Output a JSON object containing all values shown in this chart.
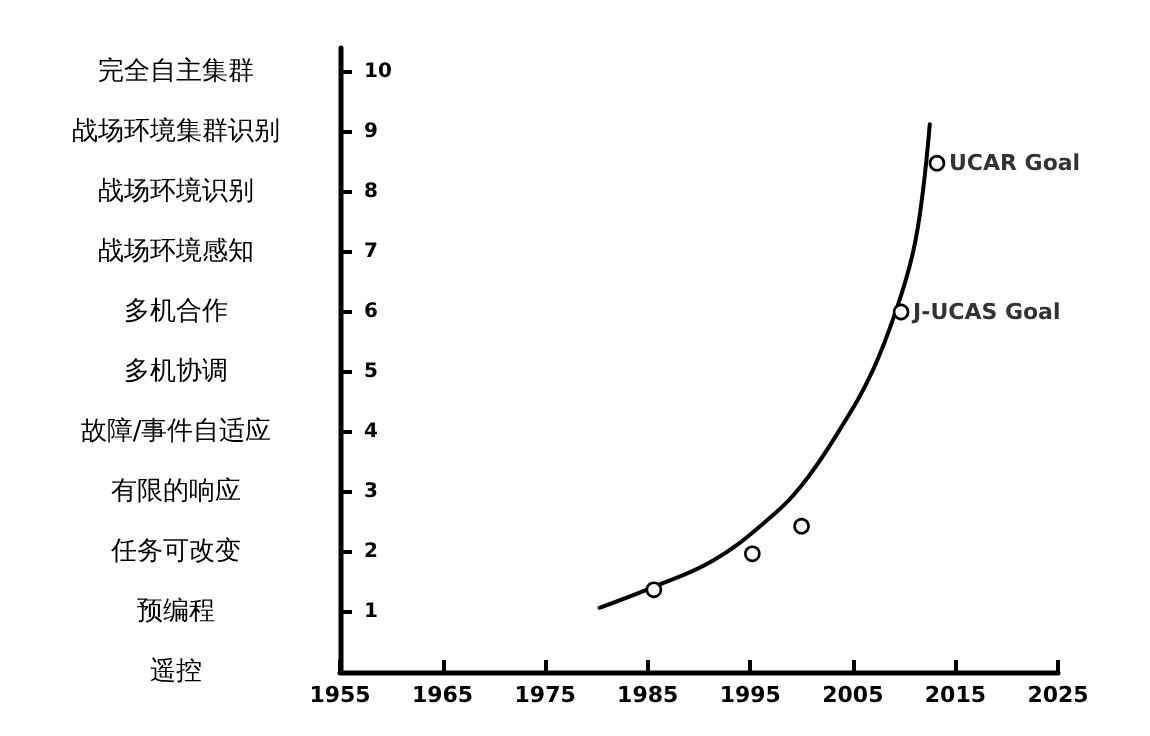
{
  "chart_data": {
    "type": "scatter",
    "xlim": [
      1955,
      2025
    ],
    "xticks": [
      1955,
      1965,
      1975,
      1985,
      1995,
      2005,
      2015,
      2025
    ],
    "ylim": [
      0,
      10.4
    ],
    "yticks": [
      1,
      2,
      3,
      4,
      5,
      6,
      7,
      8,
      9,
      10
    ],
    "grid": false,
    "series": [
      {
        "type": "line",
        "color": "#000000",
        "marker": "none",
        "line_style": "solid",
        "x": [
          1980.3,
          1985.6,
          1991.3,
          1996.3,
          2000.0,
          2003.8,
          2006.9,
          2009.3,
          2010.9,
          2011.8,
          2012.5
        ],
        "values": [
          1.07,
          1.42,
          1.85,
          2.48,
          3.11,
          4.06,
          5.01,
          6.07,
          7.02,
          7.97,
          9.13
        ]
      },
      {
        "color": "#000000",
        "marker": "circle",
        "x": [
          1985.6,
          1995.2,
          2000.0,
          2009.7,
          2013.2
        ],
        "values": [
          1.37,
          1.97,
          2.43,
          6.0,
          8.48
        ]
      }
    ],
    "annotations": [
      {
        "text": "J-UCAS Goal",
        "x": 2009.7,
        "y": 6.0
      },
      {
        "text": "UCAR Goal",
        "x": 2013.2,
        "y": 8.48
      },
      "完全自主集群",
      "战场环境集群识别",
      "战场环境识别",
      "战场环境感知",
      "多机合作",
      "多机协调",
      "故障/事件自适应",
      "有限的响应",
      "任务可改变",
      "预编程",
      "遥控"
    ]
  }
}
